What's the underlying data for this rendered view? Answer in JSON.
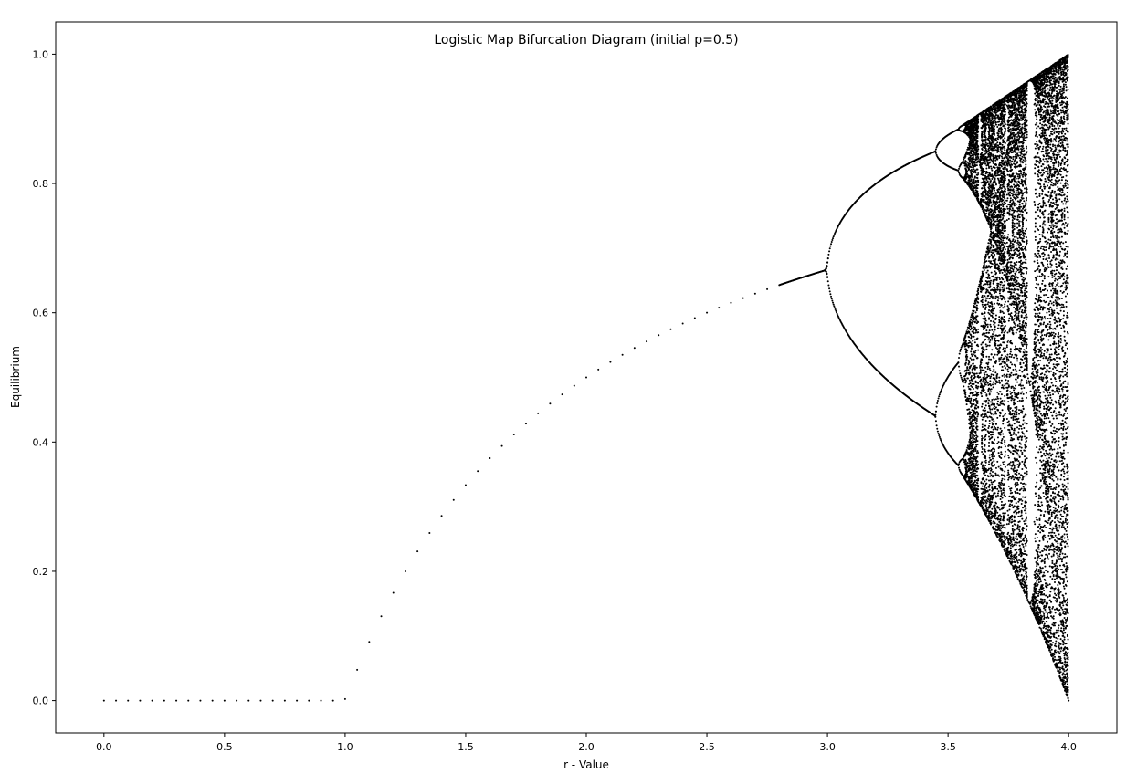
{
  "chart_data": {
    "type": "scatter",
    "title": "Logistic Map Bifurcation Diagram (initial p=0.5)",
    "xlabel": "r - Value",
    "ylabel": "Equilibrium",
    "xlim": [
      -0.2,
      4.2
    ],
    "ylim": [
      -0.05,
      1.05
    ],
    "xticks": [
      "0.0",
      "0.5",
      "1.0",
      "1.5",
      "2.0",
      "2.5",
      "3.0",
      "3.5",
      "4.0"
    ],
    "yticks": [
      "0.0",
      "0.2",
      "0.4",
      "0.6",
      "0.8",
      "1.0"
    ],
    "grid": false,
    "legend": "none",
    "marker_color": "#000000",
    "series": [
      {
        "r_range": [
          0.0,
          4.0
        ],
        "coarse_step": 0.05,
        "fine_from_r": 2.8,
        "fine_step": 0.0025,
        "initial_p": 0.5,
        "points_per_r": 80
      }
    ]
  }
}
